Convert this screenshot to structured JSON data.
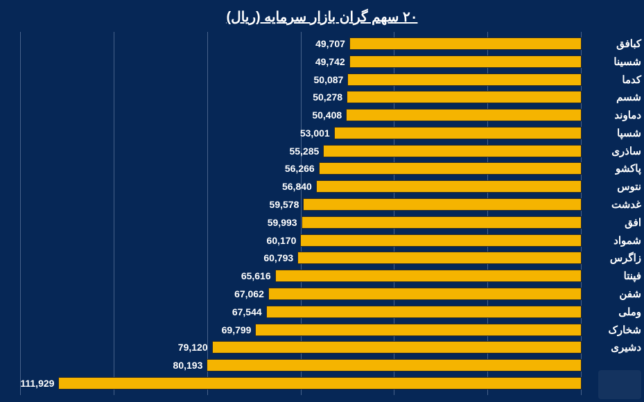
{
  "chart": {
    "type": "bar-horizontal",
    "title": "۲۰ سهم گران بازار سرمایه (ریال)",
    "title_fontsize": 20,
    "title_color": "#ffffff",
    "background_color": "#062756",
    "bar_color": "#f5b400",
    "bar_border_color": "#2a2a2a",
    "grid_color": "#8aa0c0",
    "label_color": "#ffffff",
    "value_fontsize": 14,
    "category_fontsize": 15,
    "xlim_max": 120000,
    "gridline_step": 20000,
    "items": [
      {
        "category": "کبافق",
        "value": 49707,
        "value_text": "49,707"
      },
      {
        "category": "شسینا",
        "value": 49742,
        "value_text": "49,742"
      },
      {
        "category": "کدما",
        "value": 50087,
        "value_text": "50,087"
      },
      {
        "category": "شسم",
        "value": 50278,
        "value_text": "50,278"
      },
      {
        "category": "دماوند",
        "value": 50408,
        "value_text": "50,408"
      },
      {
        "category": "شسپا",
        "value": 53001,
        "value_text": "53,001"
      },
      {
        "category": "ساذری",
        "value": 55285,
        "value_text": "55,285"
      },
      {
        "category": "پاکشو",
        "value": 56266,
        "value_text": "56,266"
      },
      {
        "category": "نتوس",
        "value": 56840,
        "value_text": "56,840"
      },
      {
        "category": "غدشت",
        "value": 59578,
        "value_text": "59,578"
      },
      {
        "category": "افق",
        "value": 59993,
        "value_text": "59,993"
      },
      {
        "category": "شمواد",
        "value": 60170,
        "value_text": "60,170"
      },
      {
        "category": "زاگرس",
        "value": 60793,
        "value_text": "60,793"
      },
      {
        "category": "فپنتا",
        "value": 65616,
        "value_text": "65,616"
      },
      {
        "category": "شفن",
        "value": 67062,
        "value_text": "67,062"
      },
      {
        "category": "وملی",
        "value": 67544,
        "value_text": "67,544"
      },
      {
        "category": "شخارک",
        "value": 69799,
        "value_text": "69,799"
      },
      {
        "category": "دشیری",
        "value": 79120,
        "value_text": "79,120"
      },
      {
        "category": "",
        "value": 80193,
        "value_text": "80,193"
      },
      {
        "category": "",
        "value": 111929,
        "value_text": "111,929"
      }
    ]
  }
}
